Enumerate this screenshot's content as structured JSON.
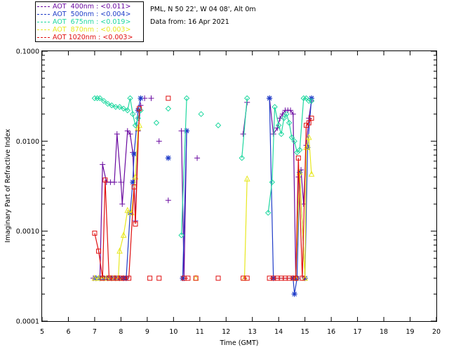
{
  "legend": [
    {
      "label": "AOT  400nm : <0.011>",
      "color": "#6a0aa0"
    },
    {
      "label": "AOT  500nm : <0.004>",
      "color": "#1f3cc8"
    },
    {
      "label": "AOT  675nm : <0.019>",
      "color": "#20d8a0"
    },
    {
      "label": "AOT  870nm : <0.003>",
      "color": "#e8e820"
    },
    {
      "label": "AOT 1020nm : <0.003>",
      "color": "#e01010"
    }
  ],
  "info": {
    "location": "PML, N 50 22', W 04 08', Alt 0m",
    "date": "Data from: 16 Apr 2021"
  },
  "chart_data": {
    "type": "line",
    "xlabel": "Time (GMT)",
    "ylabel": "Imaginary Part of Refractive Index",
    "xlim": [
      5,
      20
    ],
    "ylim": [
      0.0001,
      0.1
    ],
    "yscale": "log",
    "x_ticks": [
      "5",
      "6",
      "7",
      "8",
      "9",
      "10",
      "11",
      "12",
      "13",
      "14",
      "15",
      "16",
      "17",
      "18",
      "19",
      "20"
    ],
    "y_ticks": [
      "0.0001",
      "0.0010",
      "0.0100",
      "0.1000"
    ],
    "series": [
      {
        "name": "AOT  400nm : <0.011>",
        "color": "#6a0aa0",
        "marker": "plus",
        "segments": [
          [
            [
              6.95,
              0.0003
            ],
            [
              7.05,
              0.0003
            ],
            [
              7.2,
              0.0003
            ],
            [
              7.3,
              0.0055
            ],
            [
              7.45,
              0.0035
            ],
            [
              7.6,
              0.0035
            ],
            [
              7.75,
              0.0035
            ],
            [
              7.85,
              0.012
            ],
            [
              8.0,
              0.0035
            ],
            [
              8.05,
              0.002
            ],
            [
              8.25,
              0.013
            ],
            [
              8.35,
              0.012
            ],
            [
              8.45,
              0.0075
            ],
            [
              8.55,
              0.0013
            ],
            [
              8.65,
              0.013
            ],
            [
              8.75,
              0.025
            ]
          ],
          [
            [
              8.9,
              0.03
            ]
          ],
          [
            [
              9.15,
              0.03
            ]
          ],
          [
            [
              9.45,
              0.01
            ]
          ],
          [
            [
              9.8,
              0.0022
            ]
          ],
          [
            [
              10.3,
              0.013
            ],
            [
              10.4,
              0.0003
            ],
            [
              10.5,
              0.013
            ]
          ],
          [
            [
              10.9,
              0.0065
            ]
          ],
          [
            [
              12.65,
              0.012
            ],
            [
              12.8,
              0.027
            ]
          ],
          [
            [
              13.65,
              0.03
            ],
            [
              13.8,
              0.012
            ],
            [
              13.95,
              0.014
            ],
            [
              14.05,
              0.018
            ],
            [
              14.15,
              0.02
            ],
            [
              14.25,
              0.022
            ],
            [
              14.35,
              0.022
            ],
            [
              14.45,
              0.022
            ],
            [
              14.55,
              0.02
            ],
            [
              14.65,
              0.0003
            ],
            [
              14.75,
              0.004
            ],
            [
              14.85,
              0.0048
            ],
            [
              14.95,
              0.002
            ],
            [
              15.05,
              0.009
            ],
            [
              15.15,
              0.018
            ],
            [
              15.25,
              0.028
            ]
          ]
        ]
      },
      {
        "name": "AOT  500nm : <0.004>",
        "color": "#1f3cc8",
        "marker": "star",
        "segments": [
          [
            [
              7.05,
              0.0003
            ],
            [
              7.2,
              0.0003
            ],
            [
              7.35,
              0.0003
            ],
            [
              7.5,
              0.0003
            ],
            [
              7.65,
              0.0003
            ],
            [
              7.8,
              0.0003
            ],
            [
              7.95,
              0.0003
            ],
            [
              8.1,
              0.0003
            ],
            [
              8.2,
              0.0003
            ],
            [
              8.35,
              0.0016
            ],
            [
              8.45,
              0.0035
            ],
            [
              8.5,
              0.0072
            ],
            [
              8.65,
              0.022
            ],
            [
              8.75,
              0.03
            ]
          ],
          [
            [
              9.8,
              0.0065
            ]
          ],
          [
            [
              10.35,
              0.0003
            ],
            [
              10.5,
              0.013
            ]
          ],
          [
            [
              13.65,
              0.03
            ],
            [
              13.8,
              0.0003
            ],
            [
              14.55,
              0.0003
            ],
            [
              14.6,
              0.0002
            ],
            [
              14.7,
              0.0003
            ],
            [
              14.8,
              0.0045
            ],
            [
              15.0,
              0.0003
            ],
            [
              15.1,
              0.0085
            ],
            [
              15.25,
              0.03
            ]
          ]
        ]
      },
      {
        "name": "AOT  675nm : <0.019>",
        "color": "#20d8a0",
        "marker": "diamond",
        "segments": [
          [
            [
              7.0,
              0.03
            ],
            [
              7.1,
              0.03
            ],
            [
              7.2,
              0.03
            ],
            [
              7.35,
              0.028
            ],
            [
              7.5,
              0.026
            ],
            [
              7.65,
              0.025
            ],
            [
              7.8,
              0.024
            ],
            [
              7.95,
              0.024
            ],
            [
              8.1,
              0.023
            ],
            [
              8.25,
              0.022
            ],
            [
              8.35,
              0.03
            ],
            [
              8.45,
              0.02
            ],
            [
              8.55,
              0.015
            ],
            [
              8.65,
              0.018
            ],
            [
              8.75,
              0.022
            ]
          ],
          [
            [
              9.35,
              0.016
            ]
          ],
          [
            [
              9.8,
              0.023
            ]
          ],
          [
            [
              10.3,
              0.0009
            ],
            [
              10.5,
              0.03
            ]
          ],
          [
            [
              11.05,
              0.02
            ]
          ],
          [
            [
              11.7,
              0.015
            ]
          ],
          [
            [
              12.6,
              0.0065
            ],
            [
              12.8,
              0.03
            ]
          ],
          [
            [
              13.6,
              0.0016
            ],
            [
              13.75,
              0.0035
            ],
            [
              13.85,
              0.024
            ],
            [
              14.0,
              0.015
            ],
            [
              14.1,
              0.012
            ],
            [
              14.2,
              0.018
            ],
            [
              14.3,
              0.02
            ],
            [
              14.4,
              0.016
            ],
            [
              14.5,
              0.011
            ],
            [
              14.6,
              0.01
            ],
            [
              14.7,
              0.0075
            ],
            [
              14.8,
              0.008
            ],
            [
              14.95,
              0.03
            ],
            [
              15.05,
              0.03
            ],
            [
              15.15,
              0.028
            ],
            [
              15.25,
              0.028
            ]
          ]
        ]
      },
      {
        "name": "AOT  870nm : <0.003>",
        "color": "#e8e820",
        "marker": "triangle",
        "segments": [
          [
            [
              7.0,
              0.0003
            ],
            [
              7.15,
              0.0003
            ],
            [
              7.3,
              0.0003
            ],
            [
              7.45,
              0.0003
            ],
            [
              7.6,
              0.0003
            ],
            [
              7.75,
              0.0003
            ],
            [
              7.9,
              0.0003
            ],
            [
              7.95,
              0.0006
            ],
            [
              8.1,
              0.0009
            ],
            [
              8.25,
              0.0017
            ],
            [
              8.4,
              0.0016
            ],
            [
              8.55,
              0.004
            ],
            [
              8.65,
              0.014
            ],
            [
              8.7,
              0.015
            ]
          ],
          [
            [
              10.85,
              0.0003
            ]
          ],
          [
            [
              12.7,
              0.0003
            ],
            [
              12.8,
              0.0038
            ]
          ],
          [
            [
              14.65,
              0.0003
            ],
            [
              14.8,
              0.0045
            ],
            [
              15.0,
              0.0003
            ],
            [
              15.05,
              0.0085
            ],
            [
              15.15,
              0.011
            ],
            [
              15.25,
              0.0043
            ]
          ]
        ]
      },
      {
        "name": "AOT 1020nm : <0.003>",
        "color": "#e01010",
        "marker": "square",
        "segments": [
          [
            [
              7.0,
              0.00095
            ],
            [
              7.15,
              0.0006
            ],
            [
              7.3,
              0.0003
            ],
            [
              7.4,
              0.0037
            ],
            [
              7.55,
              0.0003
            ],
            [
              7.7,
              0.0003
            ],
            [
              7.85,
              0.0003
            ],
            [
              8.0,
              0.0003
            ],
            [
              8.1,
              0.0003
            ],
            [
              8.3,
              0.0003
            ],
            [
              8.5,
              0.0031
            ],
            [
              8.55,
              0.0012
            ],
            [
              8.7,
              0.023
            ]
          ],
          [
            [
              9.1,
              0.0003
            ]
          ],
          [
            [
              9.45,
              0.0003
            ]
          ],
          [
            [
              9.8,
              0.03
            ]
          ],
          [
            [
              10.4,
              0.0003
            ],
            [
              10.55,
              0.0003
            ]
          ],
          [
            [
              10.85,
              0.0003
            ]
          ],
          [
            [
              11.7,
              0.0003
            ]
          ],
          [
            [
              12.65,
              0.0003
            ],
            [
              12.8,
              0.0003
            ]
          ],
          [
            [
              13.65,
              0.0003
            ],
            [
              13.8,
              0.0003
            ],
            [
              13.95,
              0.0003
            ],
            [
              14.1,
              0.0003
            ],
            [
              14.25,
              0.0003
            ],
            [
              14.4,
              0.0003
            ],
            [
              14.55,
              0.0003
            ],
            [
              14.65,
              0.0003
            ],
            [
              14.75,
              0.0065
            ],
            [
              14.9,
              0.0003
            ],
            [
              15.05,
              0.015
            ],
            [
              15.15,
              0.016
            ],
            [
              15.25,
              0.018
            ]
          ]
        ]
      }
    ]
  }
}
